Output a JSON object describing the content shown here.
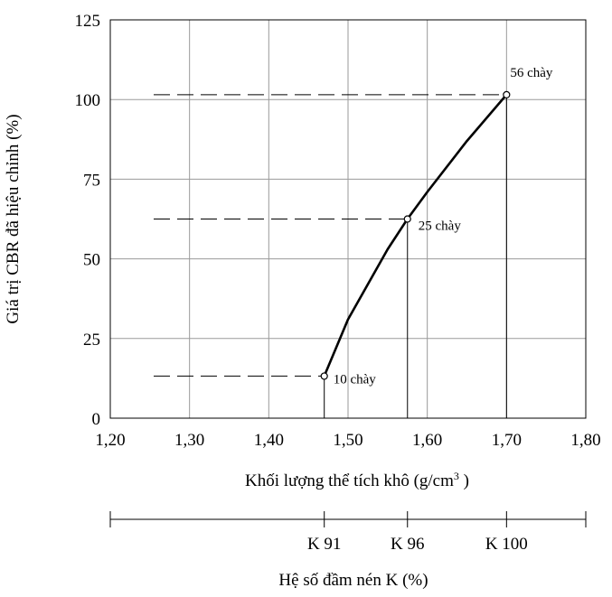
{
  "chart_data": {
    "type": "line",
    "xlabel_main": "Khối lượng thể tích khô (g/cm",
    "xlabel_sup": "3",
    "xlabel_close": " )",
    "ylabel": "Giá trị CBR đã hiệu chỉnh (%)",
    "xlim": [
      1.2,
      1.8
    ],
    "ylim": [
      0,
      125
    ],
    "x_ticks": [
      "1,20",
      "1,30",
      "1,40",
      "1,50",
      "1,60",
      "1,70",
      "1,80"
    ],
    "x_tick_values": [
      1.2,
      1.3,
      1.4,
      1.5,
      1.6,
      1.7,
      1.8
    ],
    "y_ticks": [
      "0",
      "25",
      "50",
      "75",
      "100",
      "125"
    ],
    "y_tick_values": [
      0,
      25,
      50,
      75,
      100,
      125
    ],
    "grid": true,
    "curve": {
      "x": [
        1.47,
        1.5,
        1.55,
        1.575,
        1.6,
        1.65,
        1.7
      ],
      "y": [
        13.2,
        31,
        53,
        62.5,
        71,
        87,
        101.5
      ]
    },
    "points": [
      {
        "x": 1.47,
        "y": 13.2,
        "label": "10 chày"
      },
      {
        "x": 1.575,
        "y": 62.5,
        "label": "25 chày"
      },
      {
        "x": 1.7,
        "y": 101.5,
        "label": "56 chày"
      }
    ],
    "k_axis": {
      "label": "Hệ số đầm nén K (%)",
      "ticks": [
        {
          "x": 1.47,
          "label": "K 91"
        },
        {
          "x": 1.575,
          "label": "K 96"
        },
        {
          "x": 1.7,
          "label": "K 100"
        }
      ]
    }
  }
}
